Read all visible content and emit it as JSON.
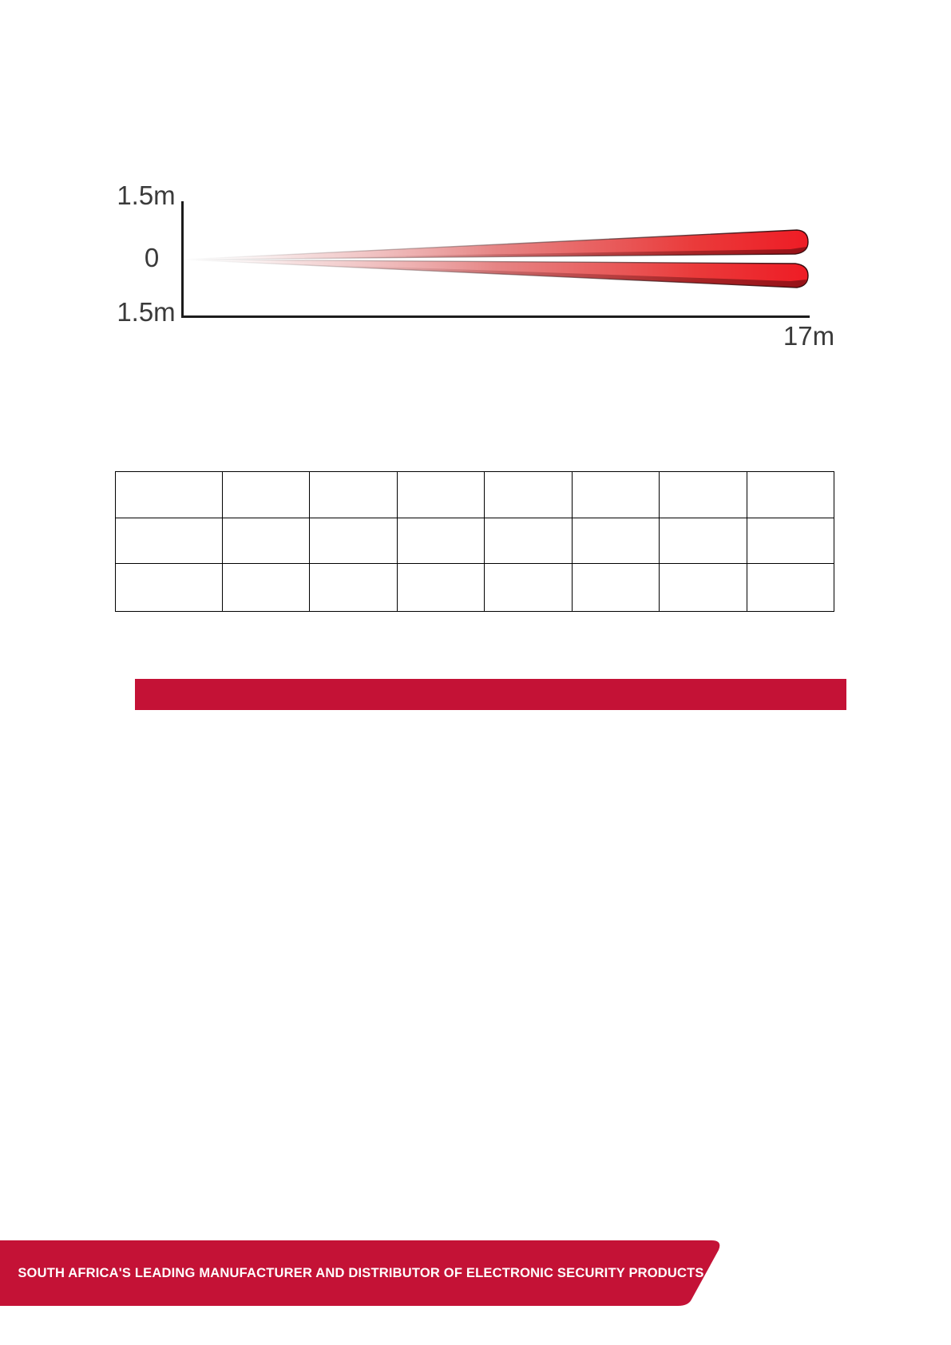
{
  "theme": {
    "accent_red": "#c41236",
    "beam_red": "#ee1c25",
    "beam_dark": "#5a0a0e",
    "axis_color": "#1c1c1c",
    "label_color": "#3a3a3a",
    "table_border": "#000000"
  },
  "diagram": {
    "type": "beam-pattern-side-view",
    "y_axis_top_label": "1.5m",
    "y_axis_zero_label": "0",
    "y_axis_bottom_label": "1.5m",
    "x_axis_range_label": "17m",
    "beam_count": 2,
    "beam_color": "#ee1c25"
  },
  "table": {
    "rows": 3,
    "columns": 8,
    "cells": [
      [
        "",
        "",
        "",
        "",
        "",
        "",
        "",
        ""
      ],
      [
        "",
        "",
        "",
        "",
        "",
        "",
        "",
        ""
      ],
      [
        "",
        "",
        "",
        "",
        "",
        "",
        "",
        ""
      ]
    ]
  },
  "footer": {
    "banner_text": "SOUTH AFRICA'S LEADING MANUFACTURER AND DISTRIBUTOR OF ELECTRONIC SECURITY PRODUCTS"
  }
}
